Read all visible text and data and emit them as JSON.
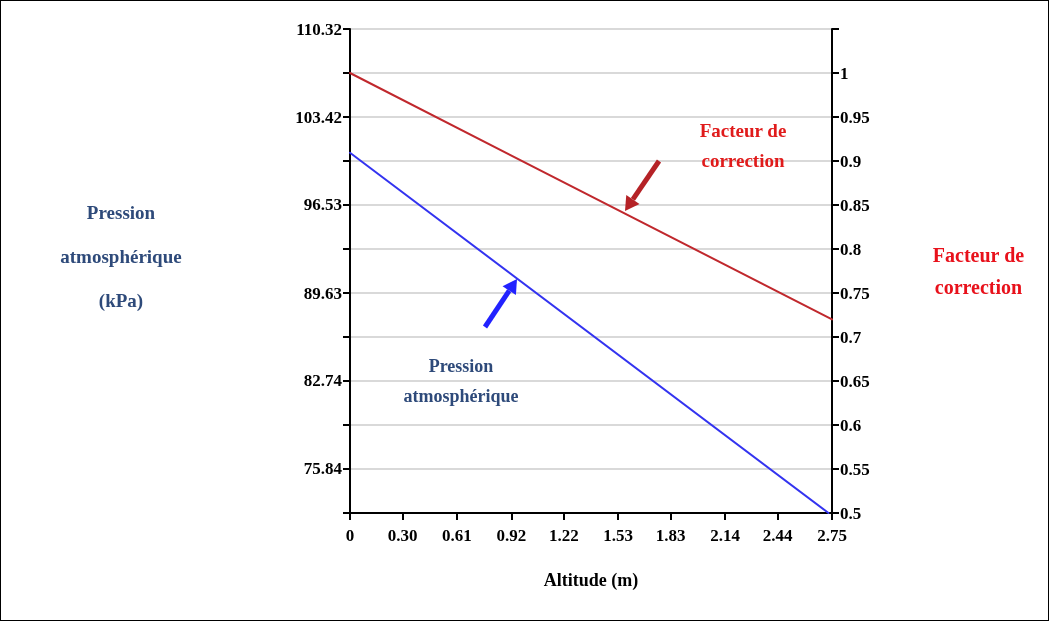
{
  "chart_data": {
    "type": "line",
    "xlabel": "Altitude (m)",
    "ylabel": "Pression atmosphérique (kPa)",
    "y2label": "Facteur de correction",
    "annotations": [
      "Facteur de correction",
      "Pression atmosphérique"
    ],
    "xlim": [
      0,
      2.75
    ],
    "xticks": [
      0,
      {
        "value": 0.3,
        "label": "0.30"
      },
      0.61,
      0.92,
      1.22,
      1.53,
      1.83,
      2.14,
      2.44,
      2.75
    ],
    "ylim": [
      72.39,
      110.32
    ],
    "yticks": [
      {
        "value": 72.39,
        "label": null
      },
      75.84,
      {
        "value": 79.29,
        "label": null
      },
      82.74,
      {
        "value": 86.185,
        "label": null
      },
      89.63,
      {
        "value": 93.08,
        "label": null
      },
      96.53,
      {
        "value": 99.975,
        "label": null
      },
      103.42,
      {
        "value": 106.87,
        "label": null
      },
      110.32
    ],
    "y2lim": [
      0.5,
      1.05
    ],
    "y2ticks": [
      0.5,
      0.55,
      0.6,
      0.65,
      0.7,
      0.75,
      0.8,
      0.85,
      0.9,
      0.95,
      1,
      {
        "value": 1.05,
        "label": null
      }
    ],
    "grid": "y",
    "marker": "none",
    "line_style": "solid",
    "series": [
      {
        "color": "#3333f0",
        "x": [
          0,
          2.73
        ],
        "values": [
          100.62,
          72.39
        ]
      },
      {
        "color": "#c0282d",
        "axis": "y2",
        "x": [
          0,
          2.75
        ],
        "values": [
          1.0,
          0.72
        ]
      }
    ]
  }
}
